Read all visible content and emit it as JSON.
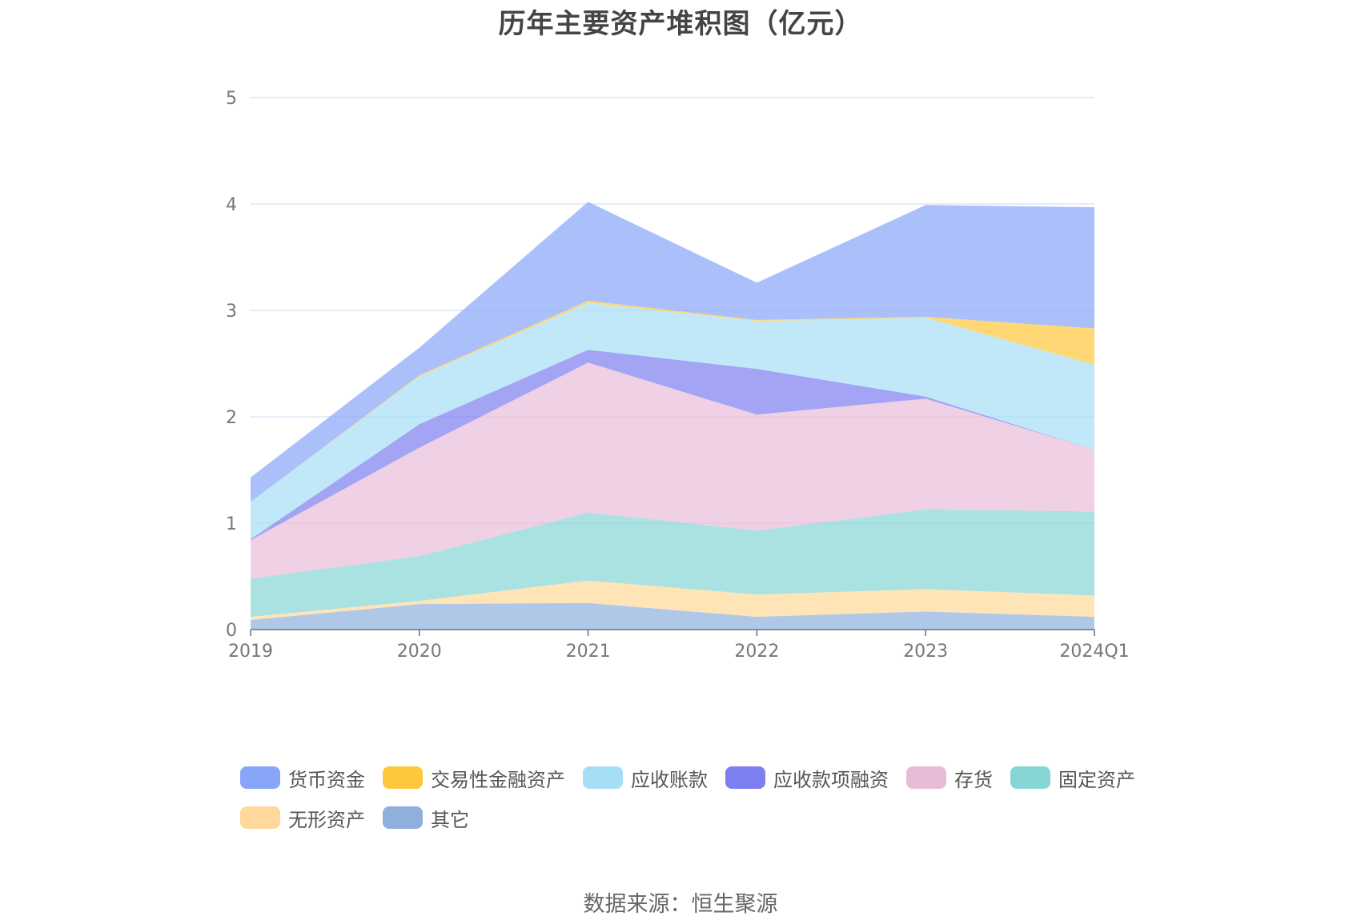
{
  "chart_data": {
    "type": "area",
    "stacked": true,
    "title": "历年主要资产堆积图（亿元）",
    "x": [
      "2019",
      "2020",
      "2021",
      "2022",
      "2023",
      "2024Q1"
    ],
    "ylim": [
      0,
      5
    ],
    "yticks": [
      "0",
      "1",
      "2",
      "3",
      "4",
      "5"
    ],
    "grid": true,
    "legend_position": "bottom",
    "series": [
      {
        "name": "其它",
        "color": "#8fb0dd",
        "values": [
          0.09,
          0.24,
          0.25,
          0.12,
          0.17,
          0.12
        ]
      },
      {
        "name": "无形资产",
        "color": "#ffd89a",
        "values": [
          0.03,
          0.03,
          0.21,
          0.21,
          0.21,
          0.2
        ]
      },
      {
        "name": "固定资产",
        "color": "#86d6d6",
        "values": [
          0.36,
          0.42,
          0.64,
          0.6,
          0.75,
          0.79
        ]
      },
      {
        "name": "存货",
        "color": "#e8bcd9",
        "values": [
          0.36,
          1.02,
          1.41,
          1.09,
          1.04,
          0.58
        ]
      },
      {
        "name": "应收款项融资",
        "color": "#7d7ef0",
        "values": [
          0.01,
          0.22,
          0.12,
          0.43,
          0.02,
          0.0
        ]
      },
      {
        "name": "应收账款",
        "color": "#a7def7",
        "values": [
          0.35,
          0.45,
          0.44,
          0.45,
          0.74,
          0.8
        ]
      },
      {
        "name": "交易性金融资产",
        "color": "#ffc73b",
        "values": [
          0.0,
          0.01,
          0.02,
          0.01,
          0.01,
          0.34
        ]
      },
      {
        "name": "货币资金",
        "color": "#87a5f9",
        "values": [
          0.23,
          0.26,
          0.93,
          0.35,
          1.05,
          1.14
        ]
      }
    ],
    "legend_order": [
      "货币资金",
      "交易性金融资产",
      "应收账款",
      "应收款项融资",
      "存货",
      "固定资产",
      "无形资产",
      "其它"
    ]
  },
  "source_text": "数据来源：恒生聚源"
}
